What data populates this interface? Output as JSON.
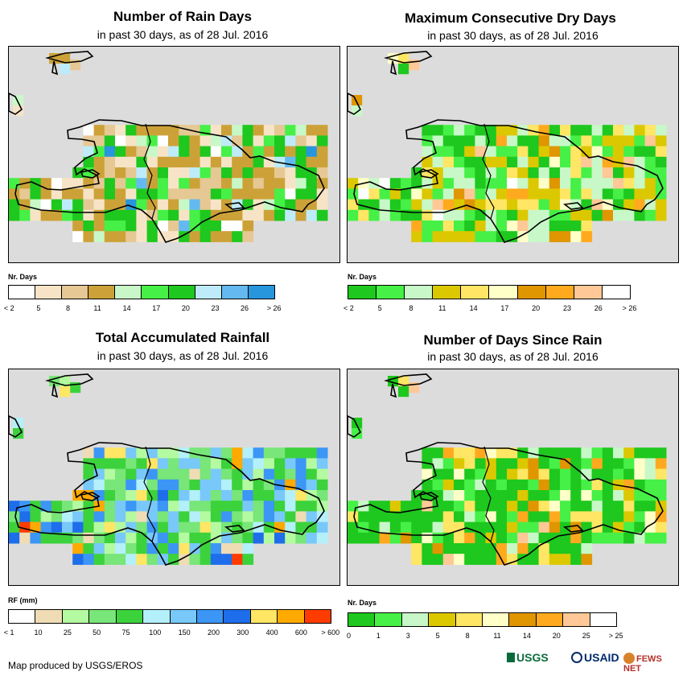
{
  "panels": [
    {
      "title": "Number of Rain Days",
      "subtitle": "in past 30 days, as of 28 Jul. 2016",
      "legend_title": "Nr. Days",
      "legend_colors": [
        "#ffffff",
        "#f7e4c6",
        "#e6c894",
        "#cca238",
        "#c8f8c8",
        "#46f046",
        "#1ec81e",
        "#beebfa",
        "#64baf0",
        "#2896dc"
      ],
      "legend_ticks": [
        "< 2",
        "5",
        "8",
        "11",
        "14",
        "17",
        "20",
        "23",
        "26",
        "> 26"
      ]
    },
    {
      "title": "Maximum Consecutive Dry Days",
      "subtitle": "in past 30 days, as of 28 Jul. 2016",
      "legend_title": "Nr. Days",
      "legend_colors": [
        "#1ec81e",
        "#46f046",
        "#c8f8c8",
        "#dcc800",
        "#ffe664",
        "#ffffc8",
        "#e09600",
        "#ffaa1e",
        "#ffc896",
        "#ffffff"
      ],
      "legend_ticks": [
        "< 2",
        "5",
        "8",
        "11",
        "14",
        "17",
        "20",
        "23",
        "26",
        "> 26"
      ]
    },
    {
      "title": "Total Accumulated Rainfall",
      "subtitle": "in past 30 days, as of 28 Jul. 2016",
      "legend_title": "RF (mm)",
      "legend_colors": [
        "#ffffff",
        "#f0dcb4",
        "#b4faa0",
        "#78e678",
        "#3cd23c",
        "#b4f0fa",
        "#78c8fa",
        "#3c96f5",
        "#1e6eeb",
        "#ffe664",
        "#ffaa00",
        "#ff3c00"
      ],
      "legend_ticks": [
        "< 1",
        "10",
        "25",
        "50",
        "75",
        "100",
        "150",
        "200",
        "300",
        "400",
        "600",
        "> 600"
      ]
    },
    {
      "title": "Number of Days Since Rain",
      "subtitle": "in past 30 days, as of 28 Jul. 2016",
      "legend_title": "Nr. Days",
      "legend_colors": [
        "#1ec81e",
        "#46f046",
        "#c8f8c8",
        "#dcc800",
        "#ffe664",
        "#ffffc8",
        "#e09600",
        "#ffaa1e",
        "#ffc896",
        "#ffffff"
      ],
      "legend_ticks": [
        "0",
        "1",
        "3",
        "5",
        "8",
        "11",
        "14",
        "20",
        "25",
        "> 25"
      ]
    }
  ],
  "credit": "Map produced by USGS/EROS",
  "logos": {
    "usgs": "USGS",
    "usaid": "USAID",
    "fewsnet": "FEWS NET"
  }
}
